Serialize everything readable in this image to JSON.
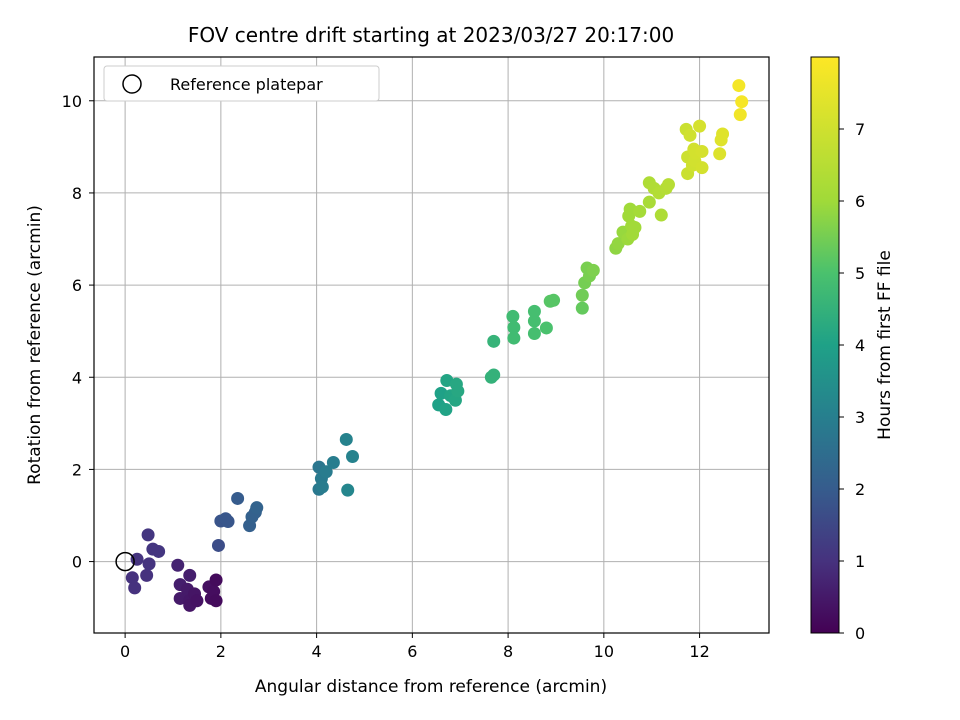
{
  "chart_data": {
    "type": "scatter",
    "title": "FOV centre drift starting at 2023/03/27 20:17:00",
    "xlabel": "Angular distance from reference (arcmin)",
    "ylabel": "Rotation from reference (arcmin)",
    "xlim": [
      -0.65,
      13.45
    ],
    "ylim": [
      -1.55,
      10.95
    ],
    "xticks": [
      0,
      2,
      4,
      6,
      8,
      10,
      12
    ],
    "yticks": [
      0,
      2,
      4,
      6,
      8,
      10
    ],
    "grid": true,
    "legend": {
      "placement": "top-left",
      "entries": [
        "Reference platepar"
      ]
    },
    "reference_point": {
      "x": 0,
      "y": 0
    },
    "colorbar": {
      "label": "Hours from first FF file",
      "range": [
        0,
        8
      ],
      "ticks": [
        0,
        1,
        2,
        3,
        4,
        5,
        6,
        7
      ],
      "colormap": "viridis"
    },
    "series": [
      {
        "points": [
          {
            "x": 0.15,
            "y": -0.35,
            "c": 1.0
          },
          {
            "x": 0.2,
            "y": -0.57,
            "c": 1.0
          },
          {
            "x": 0.25,
            "y": 0.05,
            "c": 1.05
          },
          {
            "x": 0.45,
            "y": -0.3,
            "c": 1.0
          },
          {
            "x": 0.5,
            "y": -0.05,
            "c": 1.05
          },
          {
            "x": 0.48,
            "y": 0.58,
            "c": 1.1
          },
          {
            "x": 0.58,
            "y": 0.27,
            "c": 1.1
          },
          {
            "x": 0.7,
            "y": 0.22,
            "c": 1.1
          },
          {
            "x": 1.1,
            "y": -0.08,
            "c": 0.7
          },
          {
            "x": 1.15,
            "y": -0.5,
            "c": 0.6
          },
          {
            "x": 1.15,
            "y": -0.8,
            "c": 0.5
          },
          {
            "x": 1.35,
            "y": -0.3,
            "c": 0.6
          },
          {
            "x": 1.3,
            "y": -0.6,
            "c": 0.5
          },
          {
            "x": 1.35,
            "y": -0.85,
            "c": 0.45
          },
          {
            "x": 1.35,
            "y": -0.95,
            "c": 0.4
          },
          {
            "x": 1.45,
            "y": -0.7,
            "c": 0.4
          },
          {
            "x": 1.5,
            "y": -0.85,
            "c": 0.35
          },
          {
            "x": 1.75,
            "y": -0.55,
            "c": 0.3
          },
          {
            "x": 1.8,
            "y": -0.8,
            "c": 0.25
          },
          {
            "x": 1.85,
            "y": -0.65,
            "c": 0.25
          },
          {
            "x": 1.9,
            "y": -0.4,
            "c": 0.2
          },
          {
            "x": 1.9,
            "y": -0.85,
            "c": 0.2
          },
          {
            "x": 1.95,
            "y": 0.35,
            "c": 1.65
          },
          {
            "x": 2.0,
            "y": 0.88,
            "c": 1.8
          },
          {
            "x": 2.1,
            "y": 0.93,
            "c": 1.85
          },
          {
            "x": 2.15,
            "y": 0.87,
            "c": 1.85
          },
          {
            "x": 2.35,
            "y": 1.37,
            "c": 2.0
          },
          {
            "x": 2.6,
            "y": 0.78,
            "c": 2.1
          },
          {
            "x": 2.65,
            "y": 0.97,
            "c": 2.15
          },
          {
            "x": 2.72,
            "y": 1.07,
            "c": 2.15
          },
          {
            "x": 2.75,
            "y": 1.17,
            "c": 2.2
          },
          {
            "x": 4.05,
            "y": 1.57,
            "c": 2.8
          },
          {
            "x": 4.05,
            "y": 2.05,
            "c": 2.75
          },
          {
            "x": 4.1,
            "y": 1.8,
            "c": 2.85
          },
          {
            "x": 4.12,
            "y": 1.62,
            "c": 2.9
          },
          {
            "x": 4.2,
            "y": 1.95,
            "c": 2.9
          },
          {
            "x": 4.35,
            "y": 2.15,
            "c": 2.95
          },
          {
            "x": 4.62,
            "y": 2.65,
            "c": 3.1
          },
          {
            "x": 4.65,
            "y": 1.55,
            "c": 3.2
          },
          {
            "x": 4.75,
            "y": 2.28,
            "c": 3.1
          },
          {
            "x": 6.55,
            "y": 3.4,
            "c": 4.0
          },
          {
            "x": 6.6,
            "y": 3.65,
            "c": 4.0
          },
          {
            "x": 6.7,
            "y": 3.3,
            "c": 4.05
          },
          {
            "x": 6.72,
            "y": 3.93,
            "c": 4.1
          },
          {
            "x": 6.8,
            "y": 3.6,
            "c": 4.1
          },
          {
            "x": 6.9,
            "y": 3.5,
            "c": 4.15
          },
          {
            "x": 6.92,
            "y": 3.85,
            "c": 4.2
          },
          {
            "x": 6.95,
            "y": 3.7,
            "c": 4.2
          },
          {
            "x": 7.65,
            "y": 4.0,
            "c": 4.5
          },
          {
            "x": 7.7,
            "y": 4.05,
            "c": 4.5
          },
          {
            "x": 7.7,
            "y": 4.78,
            "c": 4.55
          },
          {
            "x": 8.1,
            "y": 5.32,
            "c": 4.8
          },
          {
            "x": 8.12,
            "y": 5.08,
            "c": 4.8
          },
          {
            "x": 8.12,
            "y": 4.85,
            "c": 4.8
          },
          {
            "x": 8.55,
            "y": 4.95,
            "c": 4.9
          },
          {
            "x": 8.55,
            "y": 5.22,
            "c": 4.9
          },
          {
            "x": 8.55,
            "y": 5.43,
            "c": 4.9
          },
          {
            "x": 8.8,
            "y": 5.07,
            "c": 5.0
          },
          {
            "x": 8.88,
            "y": 5.65,
            "c": 5.15
          },
          {
            "x": 8.95,
            "y": 5.67,
            "c": 5.15
          },
          {
            "x": 9.55,
            "y": 5.5,
            "c": 5.3
          },
          {
            "x": 9.55,
            "y": 5.78,
            "c": 5.45
          },
          {
            "x": 9.6,
            "y": 6.05,
            "c": 5.5
          },
          {
            "x": 9.65,
            "y": 6.37,
            "c": 5.55
          },
          {
            "x": 9.7,
            "y": 6.2,
            "c": 5.55
          },
          {
            "x": 9.78,
            "y": 6.32,
            "c": 5.6
          },
          {
            "x": 10.25,
            "y": 6.8,
            "c": 5.8
          },
          {
            "x": 10.3,
            "y": 6.9,
            "c": 5.85
          },
          {
            "x": 10.4,
            "y": 7.15,
            "c": 5.9
          },
          {
            "x": 10.5,
            "y": 7.0,
            "c": 5.95
          },
          {
            "x": 10.52,
            "y": 7.5,
            "c": 6.0
          },
          {
            "x": 10.55,
            "y": 7.65,
            "c": 6.0
          },
          {
            "x": 10.58,
            "y": 7.28,
            "c": 6.0
          },
          {
            "x": 10.6,
            "y": 7.1,
            "c": 6.05
          },
          {
            "x": 10.65,
            "y": 7.25,
            "c": 6.05
          },
          {
            "x": 10.75,
            "y": 7.6,
            "c": 6.1
          },
          {
            "x": 10.95,
            "y": 7.8,
            "c": 6.2
          },
          {
            "x": 10.95,
            "y": 8.22,
            "c": 6.3
          },
          {
            "x": 11.05,
            "y": 8.1,
            "c": 6.35
          },
          {
            "x": 11.15,
            "y": 8.0,
            "c": 6.4
          },
          {
            "x": 11.2,
            "y": 7.52,
            "c": 6.3
          },
          {
            "x": 11.3,
            "y": 8.1,
            "c": 6.45
          },
          {
            "x": 11.35,
            "y": 8.18,
            "c": 6.5
          },
          {
            "x": 11.72,
            "y": 9.38,
            "c": 6.9
          },
          {
            "x": 11.75,
            "y": 8.42,
            "c": 6.9
          },
          {
            "x": 11.75,
            "y": 8.78,
            "c": 6.95
          },
          {
            "x": 11.8,
            "y": 9.25,
            "c": 7.0
          },
          {
            "x": 11.85,
            "y": 8.6,
            "c": 7.0
          },
          {
            "x": 11.88,
            "y": 8.95,
            "c": 7.05
          },
          {
            "x": 11.9,
            "y": 8.7,
            "c": 7.05
          },
          {
            "x": 11.92,
            "y": 8.87,
            "c": 7.1
          },
          {
            "x": 12.0,
            "y": 9.45,
            "c": 7.15
          },
          {
            "x": 12.05,
            "y": 8.55,
            "c": 7.1
          },
          {
            "x": 12.05,
            "y": 8.9,
            "c": 7.15
          },
          {
            "x": 12.42,
            "y": 8.85,
            "c": 7.3
          },
          {
            "x": 12.45,
            "y": 9.15,
            "c": 7.35
          },
          {
            "x": 12.48,
            "y": 9.28,
            "c": 7.35
          },
          {
            "x": 12.82,
            "y": 10.33,
            "c": 7.8
          },
          {
            "x": 12.85,
            "y": 9.7,
            "c": 7.75
          },
          {
            "x": 12.88,
            "y": 9.98,
            "c": 7.85
          }
        ]
      }
    ]
  }
}
